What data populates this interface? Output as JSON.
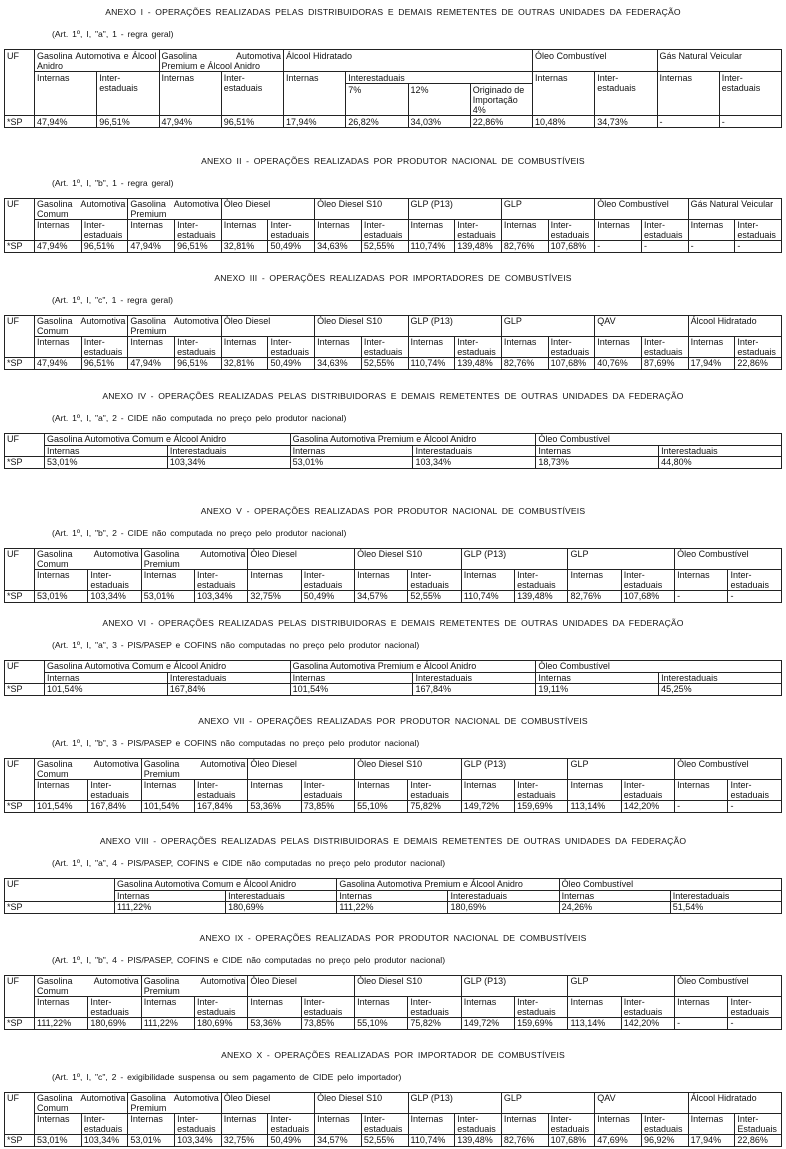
{
  "annexes": [
    {
      "title": "ANEXO I - OPERAÇÕES REALIZADAS PELAS DISTRIBUIDORAS E DEMAIS REMETENTES DE OUTRAS UNIDADES DA FEDERAÇÃO",
      "subtitle": "(Art. 1º, I, \"a\", 1 - regra geral)",
      "uf_label": "UF",
      "groups": [
        {
          "name": "Gasolina Automotiva e Álcool Anidro",
          "sub": [
            {
              "label": "Internas"
            },
            {
              "label": "Inter-estaduais"
            }
          ]
        },
        {
          "name": "Gasolina Automotiva Premium e Álcool Anidro",
          "sub": [
            {
              "label": "Internas"
            },
            {
              "label": "Inter-estaduais"
            }
          ]
        },
        {
          "name": "Álcool Hidratado",
          "sub": [
            {
              "label": "Internas"
            },
            {
              "label": "Interestaduais",
              "children": [
                "7%",
                "12%",
                "Originado de Importação 4%"
              ]
            }
          ]
        },
        {
          "name": "Óleo Combustível",
          "sub": [
            {
              "label": "Internas"
            },
            {
              "label": "Inter-estaduais"
            }
          ]
        },
        {
          "name": "Gás Natural Veicular",
          "sub": [
            {
              "label": "Internas"
            },
            {
              "label": "Inter-estaduais"
            }
          ]
        }
      ],
      "row": {
        "uf": "*SP",
        "values": [
          "47,94%",
          "96,51%",
          "47,94%",
          "96,51%",
          "17,94%",
          "26,82%",
          "34,03%",
          "22,86%",
          "10,48%",
          "34,73%",
          "-",
          "-"
        ]
      }
    },
    {
      "title": "ANEXO II - OPERAÇÕES REALIZADAS POR PRODUTOR NACIONAL DE COMBUSTÍVEIS",
      "subtitle": "(Art. 1º, I, \"b\", 1 - regra geral)",
      "uf_label": "UF",
      "groups": [
        {
          "name": "Gasolina Automotiva Comum",
          "sub": [
            {
              "label": "Internas"
            },
            {
              "label": "Inter-estaduais"
            }
          ]
        },
        {
          "name": "Gasolina Automotiva Premium",
          "sub": [
            {
              "label": "Internas"
            },
            {
              "label": "Inter-estaduais"
            }
          ]
        },
        {
          "name": "Óleo Diesel",
          "sub": [
            {
              "label": "Internas"
            },
            {
              "label": "Inter-estaduais"
            }
          ]
        },
        {
          "name": "Óleo Diesel S10",
          "sub": [
            {
              "label": "Internas"
            },
            {
              "label": "Inter-estaduais"
            }
          ]
        },
        {
          "name": "GLP (P13)",
          "sub": [
            {
              "label": "Internas"
            },
            {
              "label": "Inter-estaduais"
            }
          ]
        },
        {
          "name": "GLP",
          "sub": [
            {
              "label": "Internas"
            },
            {
              "label": "Inter-estaduais"
            }
          ]
        },
        {
          "name": "Óleo Combustível",
          "sub": [
            {
              "label": "Internas"
            },
            {
              "label": "Inter-estaduais"
            }
          ]
        },
        {
          "name": "Gás Natural Veicular",
          "sub": [
            {
              "label": "Internas"
            },
            {
              "label": "Inter-estaduais"
            }
          ]
        }
      ],
      "row": {
        "uf": "*SP",
        "values": [
          "47,94%",
          "96,51%",
          "47,94%",
          "96,51%",
          "32,81%",
          "50,49%",
          "34,63%",
          "52,55%",
          "110,74%",
          "139,48%",
          "82,76%",
          "107,68%",
          "-",
          "-",
          "-",
          "-"
        ]
      }
    },
    {
      "title": "ANEXO III - OPERAÇÕES REALIZADAS POR IMPORTADORES DE COMBUSTÍVEIS",
      "subtitle": "(Art. 1º, I, \"c\", 1 - regra geral)",
      "uf_label": "UF",
      "groups": [
        {
          "name": "Gasolina Automotiva Comum",
          "sub": [
            {
              "label": "Internas"
            },
            {
              "label": "Inter-estaduais"
            }
          ]
        },
        {
          "name": "Gasolina Automotiva Premium",
          "sub": [
            {
              "label": "Internas"
            },
            {
              "label": "Inter-estaduais"
            }
          ]
        },
        {
          "name": "Óleo Diesel",
          "sub": [
            {
              "label": "Internas"
            },
            {
              "label": "Inter-estaduais"
            }
          ]
        },
        {
          "name": "Óleo Diesel S10",
          "sub": [
            {
              "label": "Internas"
            },
            {
              "label": "Inter-estaduais"
            }
          ]
        },
        {
          "name": "GLP (P13)",
          "sub": [
            {
              "label": "Internas"
            },
            {
              "label": "Inter-estaduais"
            }
          ]
        },
        {
          "name": "GLP",
          "sub": [
            {
              "label": "Internas"
            },
            {
              "label": "Inter-estaduais"
            }
          ]
        },
        {
          "name": "QAV",
          "sub": [
            {
              "label": "Internas"
            },
            {
              "label": "Inter-estaduais"
            }
          ]
        },
        {
          "name": "Álcool Hidratado",
          "sub": [
            {
              "label": "Internas"
            },
            {
              "label": "Inter-estaduais"
            }
          ]
        }
      ],
      "row": {
        "uf": "*SP",
        "values": [
          "47,94%",
          "96,51%",
          "47,94%",
          "96,51%",
          "32,81%",
          "50,49%",
          "34,63%",
          "52,55%",
          "110,74%",
          "139,48%",
          "82,76%",
          "107,68%",
          "40,76%",
          "87,69%",
          "17,94%",
          "22,86%"
        ]
      }
    },
    {
      "title": "ANEXO IV - OPERAÇÕES REALIZADAS PELAS DISTRIBUIDORAS E DEMAIS REMETENTES DE OUTRAS UNIDADES DA FEDERAÇÃO",
      "subtitle": "(Art. 1º, I, \"a\", 2 - CIDE não computada no preço pelo produtor nacional)",
      "uf_label": "UF",
      "groups": [
        {
          "name": "Gasolina Automotiva Comum e Álcool Anidro",
          "sub": [
            {
              "label": "Internas"
            },
            {
              "label": "Interestaduais"
            }
          ]
        },
        {
          "name": "Gasolina Automotiva Premium e Álcool Anidro",
          "sub": [
            {
              "label": "Internas"
            },
            {
              "label": "Interestaduais"
            }
          ]
        },
        {
          "name": "Óleo Combustível",
          "sub": [
            {
              "label": "Internas"
            },
            {
              "label": "Interestaduais"
            }
          ]
        }
      ],
      "row": {
        "uf": "*SP",
        "values": [
          "53,01%",
          "103,34%",
          "53,01%",
          "103,34%",
          "18,73%",
          "44,80%"
        ]
      }
    },
    {
      "title": "ANEXO V - OPERAÇÕES REALIZADAS POR PRODUTOR NACIONAL DE COMBUSTÍVEIS",
      "subtitle": "(Art. 1º, I, \"b\", 2 - CIDE não computada no preço pelo produtor nacional)",
      "uf_label": "UF",
      "groups": [
        {
          "name": "Gasolina Automotiva Comum",
          "sub": [
            {
              "label": "Internas"
            },
            {
              "label": "Inter-estaduais"
            }
          ]
        },
        {
          "name": "Gasolina Automotiva Premium",
          "sub": [
            {
              "label": "Internas"
            },
            {
              "label": "Inter-estaduais"
            }
          ]
        },
        {
          "name": "Óleo Diesel",
          "sub": [
            {
              "label": "Internas"
            },
            {
              "label": "Inter-estaduais"
            }
          ]
        },
        {
          "name": "Óleo Diesel S10",
          "sub": [
            {
              "label": "Internas"
            },
            {
              "label": "Inter-estaduais"
            }
          ]
        },
        {
          "name": "GLP (P13)",
          "sub": [
            {
              "label": "Internas"
            },
            {
              "label": "Inter-estaduais"
            }
          ]
        },
        {
          "name": "GLP",
          "sub": [
            {
              "label": "Internas"
            },
            {
              "label": "Inter-estaduais"
            }
          ]
        },
        {
          "name": "Óleo Combustível",
          "sub": [
            {
              "label": "Internas"
            },
            {
              "label": "Inter-estaduais"
            }
          ]
        }
      ],
      "row": {
        "uf": "*SP",
        "values": [
          "53,01%",
          "103,34%",
          "53,01%",
          "103,34%",
          "32,75%",
          "50,49%",
          "34,57%",
          "52,55%",
          "110,74%",
          "139,48%",
          "82,76%",
          "107,68%",
          "-",
          "-"
        ]
      }
    },
    {
      "title": "ANEXO VI - OPERAÇÕES REALIZADAS PELAS DISTRIBUIDORAS E DEMAIS REMETENTES DE OUTRAS UNIDADES DA FEDERAÇÃO",
      "subtitle": "(Art. 1º, I, \"a\", 3 - PIS/PASEP e COFINS não computadas no preço pelo produtor nacional)",
      "uf_label": "UF",
      "groups": [
        {
          "name": "Gasolina Automotiva Comum e Álcool Anidro",
          "sub": [
            {
              "label": "Internas"
            },
            {
              "label": "Interestaduais"
            }
          ]
        },
        {
          "name": "Gasolina Automotiva Premium e Álcool Anidro",
          "sub": [
            {
              "label": "Internas"
            },
            {
              "label": "Interestaduais"
            }
          ]
        },
        {
          "name": "Óleo Combustível",
          "sub": [
            {
              "label": "Internas"
            },
            {
              "label": "Interestaduais"
            }
          ]
        }
      ],
      "row": {
        "uf": "*SP",
        "values": [
          "101,54%",
          "167,84%",
          "101,54%",
          "167,84%",
          "19,11%",
          "45,25%"
        ]
      }
    },
    {
      "title": "ANEXO VII - OPERAÇÕES REALIZADAS POR PRODUTOR NACIONAL DE COMBUSTÍVEIS",
      "subtitle": "(Art. 1º, I, \"b\", 3 - PIS/PASEP e COFINS não computadas no preço pelo produtor nacional)",
      "uf_label": "UF",
      "groups": [
        {
          "name": "Gasolina Automotiva Comum",
          "sub": [
            {
              "label": "Internas"
            },
            {
              "label": "Inter-estaduais"
            }
          ]
        },
        {
          "name": "Gasolina Automotiva Premium",
          "sub": [
            {
              "label": "Internas"
            },
            {
              "label": "Inter-estaduais"
            }
          ]
        },
        {
          "name": "Óleo Diesel",
          "sub": [
            {
              "label": "Internas"
            },
            {
              "label": "Inter-estaduais"
            }
          ]
        },
        {
          "name": "Óleo Diesel S10",
          "sub": [
            {
              "label": "Internas"
            },
            {
              "label": "Inter-estaduais"
            }
          ]
        },
        {
          "name": "GLP (P13)",
          "sub": [
            {
              "label": "Internas"
            },
            {
              "label": "Inter-estaduais"
            }
          ]
        },
        {
          "name": "GLP",
          "sub": [
            {
              "label": "Internas"
            },
            {
              "label": "Inter-estaduais"
            }
          ]
        },
        {
          "name": "Óleo Combustível",
          "sub": [
            {
              "label": "Internas"
            },
            {
              "label": "Inter-estaduais"
            }
          ]
        }
      ],
      "row": {
        "uf": "*SP",
        "values": [
          "101,54%",
          "167,84%",
          "101,54%",
          "167,84%",
          "53,36%",
          "73,85%",
          "55,10%",
          "75,82%",
          "149,72%",
          "159,69%",
          "113,14%",
          "142,20%",
          "-",
          "-"
        ]
      }
    },
    {
      "title": "ANEXO VIII - OPERAÇÕES REALIZADAS PELAS DISTRIBUIDORAS E DEMAIS REMETENTES DE OUTRAS UNIDADES DA FEDERAÇÃO",
      "subtitle": "(Art. 1º, I, \"a\", 4 - PIS/PASEP, COFINS e CIDE não computadas no preço pelo produtor nacional)",
      "uf_label": "UF",
      "groups": [
        {
          "name": "Gasolina Automotiva Comum e Álcool Anidro",
          "sub": [
            {
              "label": "Internas"
            },
            {
              "label": "Interestaduais"
            }
          ]
        },
        {
          "name": "Gasolina Automotiva Premium e Álcool Anidro",
          "sub": [
            {
              "label": "Internas"
            },
            {
              "label": "Interestaduais"
            }
          ]
        },
        {
          "name": "Óleo Combustível",
          "sub": [
            {
              "label": "Internas"
            },
            {
              "label": "Interestaduais"
            }
          ]
        }
      ],
      "row": {
        "uf": "*SP",
        "values": [
          "111,22%",
          "180,69%",
          "111,22%",
          "180,69%",
          "24,26%",
          "51,54%"
        ]
      }
    },
    {
      "title": "ANEXO IX - OPERAÇÕES REALIZADAS POR PRODUTOR NACIONAL DE COMBUSTÍVEIS",
      "subtitle": "(Art. 1º, I, \"b\", 4 - PIS/PASEP, COFINS e CIDE não computadas no preço pelo produtor nacional)",
      "uf_label": "UF",
      "groups": [
        {
          "name": "Gasolina Automotiva Comum",
          "sub": [
            {
              "label": "Internas"
            },
            {
              "label": "Inter-estaduais"
            }
          ]
        },
        {
          "name": "Gasolina Automotiva Premium",
          "sub": [
            {
              "label": "Internas"
            },
            {
              "label": "Inter-estaduais"
            }
          ]
        },
        {
          "name": "Óleo Diesel",
          "sub": [
            {
              "label": "Internas"
            },
            {
              "label": "Inter-estaduais"
            }
          ]
        },
        {
          "name": "Óleo Diesel S10",
          "sub": [
            {
              "label": "Internas"
            },
            {
              "label": "Inter-estaduais"
            }
          ]
        },
        {
          "name": "GLP (P13)",
          "sub": [
            {
              "label": "Internas"
            },
            {
              "label": "Inter-estaduais"
            }
          ]
        },
        {
          "name": "GLP",
          "sub": [
            {
              "label": "Internas"
            },
            {
              "label": "Inter-estaduais"
            }
          ]
        },
        {
          "name": "Óleo Combustível",
          "sub": [
            {
              "label": "Internas"
            },
            {
              "label": "Inter-estaduais"
            }
          ]
        }
      ],
      "row": {
        "uf": "*SP",
        "values": [
          "111,22%",
          "180,69%",
          "111,22%",
          "180,69%",
          "53,36%",
          "73,85%",
          "55,10%",
          "75,82%",
          "149,72%",
          "159,69%",
          "113,14%",
          "142,20%",
          "-",
          "-"
        ]
      }
    },
    {
      "title": "ANEXO X - OPERAÇÕES REALIZADAS POR IMPORTADOR DE COMBUSTÍVEIS",
      "subtitle": "(Art. 1º, I, \"c\", 2 - exigibilidade suspensa ou sem pagamento de CIDE pelo importador)",
      "uf_label": "UF",
      "groups": [
        {
          "name": "Gasolina Automotiva Comum",
          "sub": [
            {
              "label": "Internas"
            },
            {
              "label": "Inter-estaduais"
            }
          ]
        },
        {
          "name": "Gasolina Automotiva Premium",
          "sub": [
            {
              "label": "Internas"
            },
            {
              "label": "Inter-estaduais"
            }
          ]
        },
        {
          "name": "Óleo Diesel",
          "sub": [
            {
              "label": "Internas"
            },
            {
              "label": "Inter-estaduais"
            }
          ]
        },
        {
          "name": "Óleo Diesel S10",
          "sub": [
            {
              "label": "Internas"
            },
            {
              "label": "Inter-estaduais"
            }
          ]
        },
        {
          "name": "GLP (P13)",
          "sub": [
            {
              "label": "Internas"
            },
            {
              "label": "Inter-estaduais"
            }
          ]
        },
        {
          "name": "GLP",
          "sub": [
            {
              "label": "Internas"
            },
            {
              "label": "Inter-estaduais"
            }
          ]
        },
        {
          "name": "QAV",
          "sub": [
            {
              "label": "Internas"
            },
            {
              "label": "Inter-estaduais"
            }
          ]
        },
        {
          "name": "Álcool Hidratado",
          "sub": [
            {
              "label": "Internas"
            },
            {
              "label": "Inter-Estaduais"
            }
          ]
        }
      ],
      "row": {
        "uf": "*SP",
        "values": [
          "53,01%",
          "103,34%",
          "53,01%",
          "103,34%",
          "32,75%",
          "50,49%",
          "34,57%",
          "52,55%",
          "110,74%",
          "139,48%",
          "82,76%",
          "107,68%",
          "47,69%",
          "96,92%",
          "17,94%",
          "22,86%"
        ]
      }
    }
  ]
}
